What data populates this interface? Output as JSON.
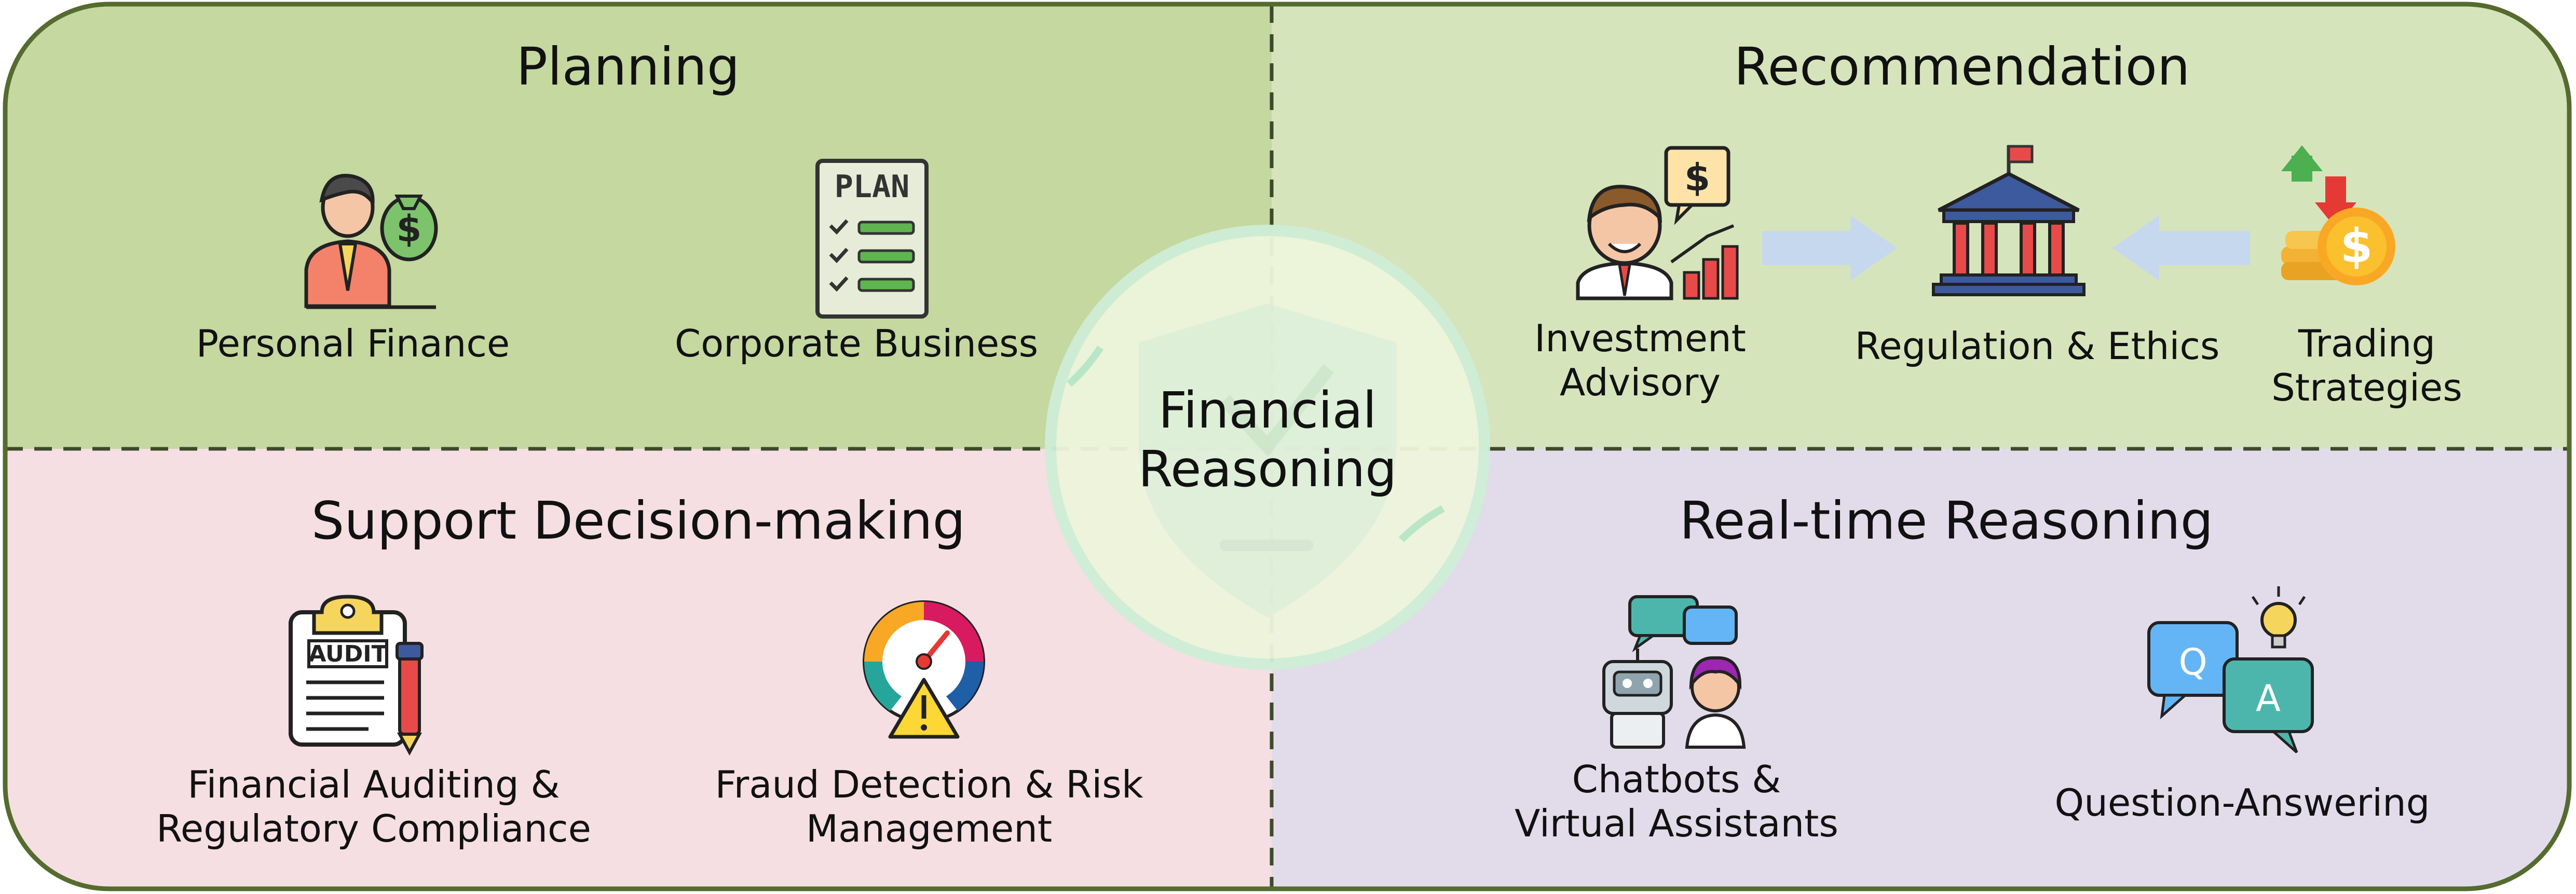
{
  "quadrants": {
    "planning": {
      "title": "Planning",
      "items": [
        {
          "label": "Personal Finance",
          "icon": "businessman-money-bag-icon"
        },
        {
          "label": "Corporate Business",
          "icon": "plan-checklist-icon"
        }
      ]
    },
    "recommendation": {
      "title": "Recommendation",
      "items": [
        {
          "label": "Investment\nAdvisory",
          "icon": "investment-advisor-icon"
        },
        {
          "label": "Regulation & Ethics",
          "icon": "bank-building-icon"
        },
        {
          "label": "Trading\nStrategies",
          "icon": "coins-arrows-icon"
        }
      ]
    },
    "support": {
      "title": "Support Decision-making",
      "items": [
        {
          "label": "Financial Auditing &\nRegulatory Compliance",
          "icon": "audit-clipboard-icon"
        },
        {
          "label": "Fraud Detection & Risk\nManagement",
          "icon": "risk-gauge-icon"
        }
      ]
    },
    "realtime": {
      "title": "Real-time Reasoning",
      "items": [
        {
          "label": "Chatbots &\nVirtual Assistants",
          "icon": "chatbot-assistant-icon"
        },
        {
          "label": "Question-Answering",
          "icon": "qa-bubbles-icon"
        }
      ]
    }
  },
  "center": {
    "title": "Financial\nReasoning",
    "icon": "shield-check-icon"
  },
  "colors": {
    "planning_bg": "#c4d89f",
    "recommendation_bg": "#d6e4bc",
    "support_bg": "#f5dfe3",
    "realtime_bg": "#e2dcea",
    "border": "#556b2f",
    "arrow": "#c6d8ee",
    "center_fill": "#eef5dc",
    "center_ring": "#cfeed7"
  }
}
